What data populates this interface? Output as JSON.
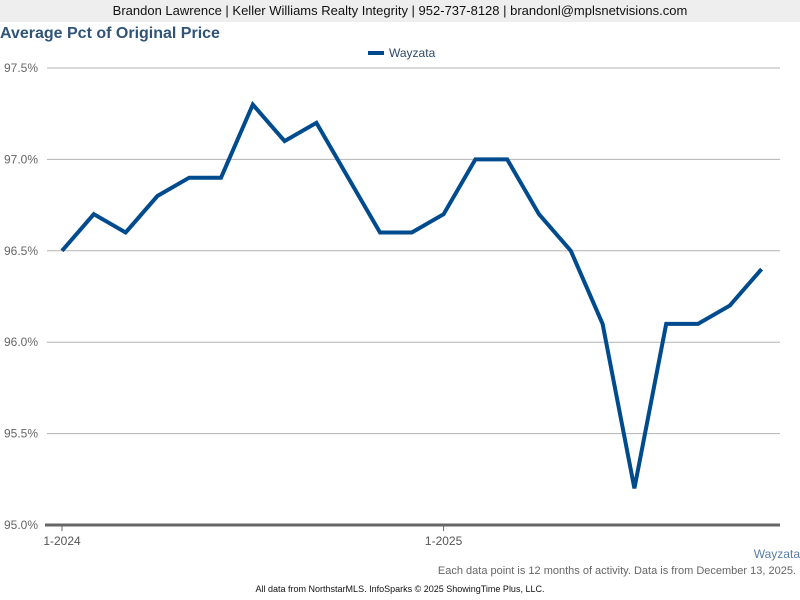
{
  "header": {
    "agent_info": "Brandon Lawrence | Keller Williams Realty Integrity | 952-737-8128 | brandonl@mplsnetvisions.com"
  },
  "legend": {
    "series_name": "Wayzata",
    "color": "#004b8d"
  },
  "footer": {
    "series_label": "Wayzata",
    "note": "Each data point is 12 months of activity. Data is from December 13, 2025.",
    "credit": "All data from NorthstarMLS. InfoSparks © 2025 ShowingTime Plus, LLC."
  },
  "chart_data": {
    "type": "line",
    "title": "Average Pct of Original Price",
    "xlabel": "",
    "ylabel": "",
    "x": [
      "1-2024",
      "2-2024",
      "3-2024",
      "4-2024",
      "5-2024",
      "6-2024",
      "7-2024",
      "8-2024",
      "9-2024",
      "10-2024",
      "11-2024",
      "12-2024",
      "1-2025",
      "2-2025",
      "3-2025",
      "4-2025",
      "5-2025",
      "6-2025",
      "7-2025",
      "8-2025",
      "9-2025",
      "10-2025",
      "11-2025",
      "12-2025"
    ],
    "x_tick_labels": [
      "1-2024",
      "1-2025"
    ],
    "series": [
      {
        "name": "Wayzata",
        "color": "#004b8d",
        "values": [
          96.5,
          96.7,
          96.6,
          96.8,
          96.9,
          96.9,
          97.3,
          97.1,
          97.2,
          96.9,
          96.6,
          96.6,
          96.7,
          97.0,
          97.0,
          96.7,
          96.5,
          96.1,
          95.2,
          96.1,
          96.1,
          96.2,
          96.4
        ]
      }
    ],
    "y_ticks": [
      "95.0%",
      "95.5%",
      "96.0%",
      "96.5%",
      "97.0%",
      "97.5%"
    ],
    "ylim": [
      95.0,
      97.5
    ],
    "grid": true,
    "legend_position": "top-center"
  }
}
